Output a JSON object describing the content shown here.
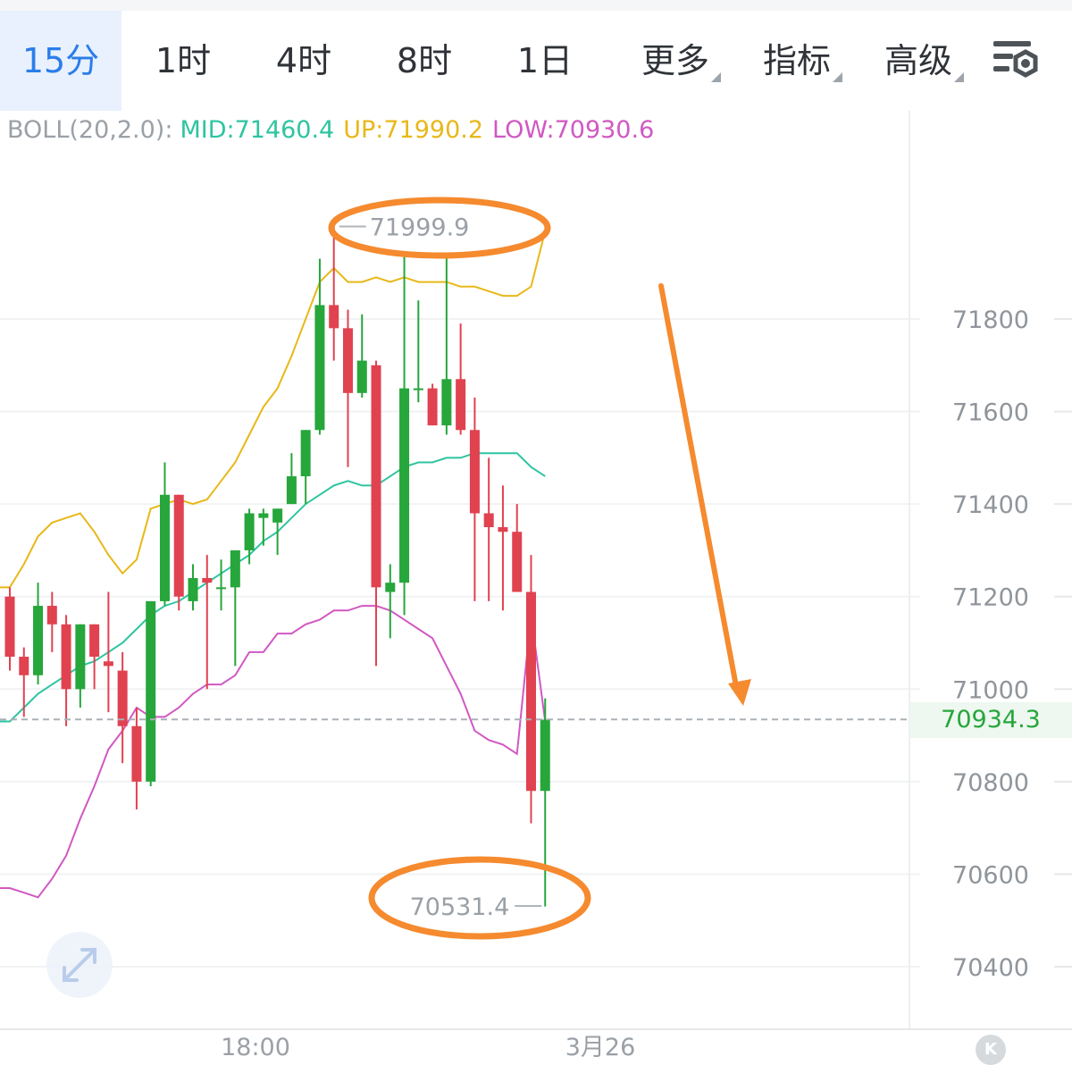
{
  "tabs": [
    {
      "label": "15分",
      "active": true
    },
    {
      "label": "1时",
      "active": false
    },
    {
      "label": "4时",
      "active": false
    },
    {
      "label": "8时",
      "active": false
    },
    {
      "label": "1日",
      "active": false
    },
    {
      "label": "更多",
      "dropdown": true
    },
    {
      "label": "指标",
      "dropdown": true
    },
    {
      "label": "高级",
      "dropdown": true
    }
  ],
  "settings_icon": "settings-icon",
  "indicator": {
    "name": "BOLL(20,2.0):",
    "mid_label": "MID:71460.4",
    "up_label": "UP:71990.2",
    "low_label": "LOW:70930.6",
    "colors": {
      "name": "#9aa0a6",
      "mid": "#2ec4a0",
      "up": "#e8b818",
      "low": "#d158c2"
    }
  },
  "current_price": "70934.3",
  "colors": {
    "up": "#26a63b",
    "down": "#e04250",
    "accent": "#2b7de9",
    "annotation": "#f58a2e"
  },
  "chart_data": {
    "type": "candlestick",
    "interval": "15分",
    "ylim": [
      70270,
      72220
    ],
    "y_ticks": [
      "71800",
      "71600",
      "71400",
      "71200",
      "71000",
      "70800",
      "70600",
      "70400"
    ],
    "x_ticks": [
      "18:00",
      "3月26"
    ],
    "high_label": "71999.9",
    "low_label": "70531.4",
    "candles": [
      {
        "o": 71200,
        "h": 71220,
        "l": 71040,
        "c": 71070
      },
      {
        "o": 71070,
        "h": 71090,
        "l": 70940,
        "c": 71030
      },
      {
        "o": 71030,
        "h": 71230,
        "l": 71010,
        "c": 71180
      },
      {
        "o": 71180,
        "h": 71210,
        "l": 71080,
        "c": 71140
      },
      {
        "o": 71140,
        "h": 71160,
        "l": 70920,
        "c": 71000
      },
      {
        "o": 71000,
        "h": 71140,
        "l": 70960,
        "c": 71140
      },
      {
        "o": 71140,
        "h": 71140,
        "l": 71000,
        "c": 71070
      },
      {
        "o": 71060,
        "h": 71210,
        "l": 70950,
        "c": 71050
      },
      {
        "o": 71040,
        "h": 71080,
        "l": 70840,
        "c": 70920
      },
      {
        "o": 70920,
        "h": 70960,
        "l": 70740,
        "c": 70800
      },
      {
        "o": 70800,
        "h": 71190,
        "l": 70790,
        "c": 71190
      },
      {
        "o": 71190,
        "h": 71490,
        "l": 71180,
        "c": 71420
      },
      {
        "o": 71420,
        "h": 71420,
        "l": 71170,
        "c": 71200
      },
      {
        "o": 71190,
        "h": 71270,
        "l": 71170,
        "c": 71240
      },
      {
        "o": 71240,
        "h": 71290,
        "l": 71000,
        "c": 71230
      },
      {
        "o": 71220,
        "h": 71280,
        "l": 71170,
        "c": 71220
      },
      {
        "o": 71220,
        "h": 71290,
        "l": 71050,
        "c": 71300
      },
      {
        "o": 71300,
        "h": 71390,
        "l": 71270,
        "c": 71380
      },
      {
        "o": 71370,
        "h": 71390,
        "l": 71310,
        "c": 71380
      },
      {
        "o": 71360,
        "h": 71390,
        "l": 71290,
        "c": 71390
      },
      {
        "o": 71400,
        "h": 71510,
        "l": 71400,
        "c": 71460
      },
      {
        "o": 71460,
        "h": 71560,
        "l": 71400,
        "c": 71560
      },
      {
        "o": 71560,
        "h": 71930,
        "l": 71550,
        "c": 71830
      },
      {
        "o": 71830,
        "h": 72000,
        "l": 71710,
        "c": 71780
      },
      {
        "o": 71780,
        "h": 71820,
        "l": 71480,
        "c": 71640
      },
      {
        "o": 71640,
        "h": 71810,
        "l": 71630,
        "c": 71710
      },
      {
        "o": 71700,
        "h": 71710,
        "l": 71050,
        "c": 71220
      },
      {
        "o": 71210,
        "h": 71270,
        "l": 71110,
        "c": 71230
      },
      {
        "o": 71230,
        "h": 71940,
        "l": 71160,
        "c": 71650
      },
      {
        "o": 71650,
        "h": 71840,
        "l": 71620,
        "c": 71650
      },
      {
        "o": 71650,
        "h": 71660,
        "l": 71570,
        "c": 71570
      },
      {
        "o": 71570,
        "h": 71940,
        "l": 71550,
        "c": 71670
      },
      {
        "o": 71670,
        "h": 71790,
        "l": 71550,
        "c": 71560
      },
      {
        "o": 71560,
        "h": 71630,
        "l": 71190,
        "c": 71380
      },
      {
        "o": 71380,
        "h": 71500,
        "l": 71190,
        "c": 71350
      },
      {
        "o": 71350,
        "h": 71440,
        "l": 71170,
        "c": 71340
      },
      {
        "o": 71340,
        "h": 71400,
        "l": 71220,
        "c": 71210
      },
      {
        "o": 71210,
        "h": 71290,
        "l": 70710,
        "c": 70780
      },
      {
        "o": 70780,
        "h": 70980,
        "l": 70530,
        "c": 70934
      }
    ],
    "series": [
      {
        "name": "UP",
        "values": [
          71220,
          71270,
          71330,
          71360,
          71370,
          71380,
          71340,
          71290,
          71250,
          71280,
          71390,
          71400,
          71410,
          71400,
          71410,
          71450,
          71490,
          71550,
          71610,
          71650,
          71720,
          71800,
          71880,
          71910,
          71880,
          71880,
          71890,
          71880,
          71890,
          71880,
          71880,
          71880,
          71870,
          71870,
          71860,
          71850,
          71850,
          71870,
          71990
        ]
      },
      {
        "name": "MID",
        "values": [
          70930,
          70960,
          70990,
          71010,
          71030,
          71050,
          71060,
          71080,
          71100,
          71130,
          71160,
          71180,
          71190,
          71210,
          71230,
          71250,
          71270,
          71290,
          71320,
          71340,
          71370,
          71400,
          71420,
          71440,
          71450,
          71440,
          71440,
          71460,
          71480,
          71490,
          71490,
          71500,
          71500,
          71510,
          71510,
          71510,
          71510,
          71480,
          71460
        ]
      },
      {
        "name": "LOW",
        "values": [
          70570,
          70560,
          70550,
          70590,
          70640,
          70720,
          70790,
          70870,
          70910,
          70960,
          70940,
          70940,
          70960,
          70990,
          71010,
          71010,
          71030,
          71080,
          71080,
          71120,
          71120,
          71140,
          71150,
          71170,
          71170,
          71180,
          71180,
          71170,
          71150,
          71130,
          71110,
          71050,
          70990,
          70910,
          70890,
          70880,
          70860,
          71160,
          70930
        ]
      }
    ]
  }
}
